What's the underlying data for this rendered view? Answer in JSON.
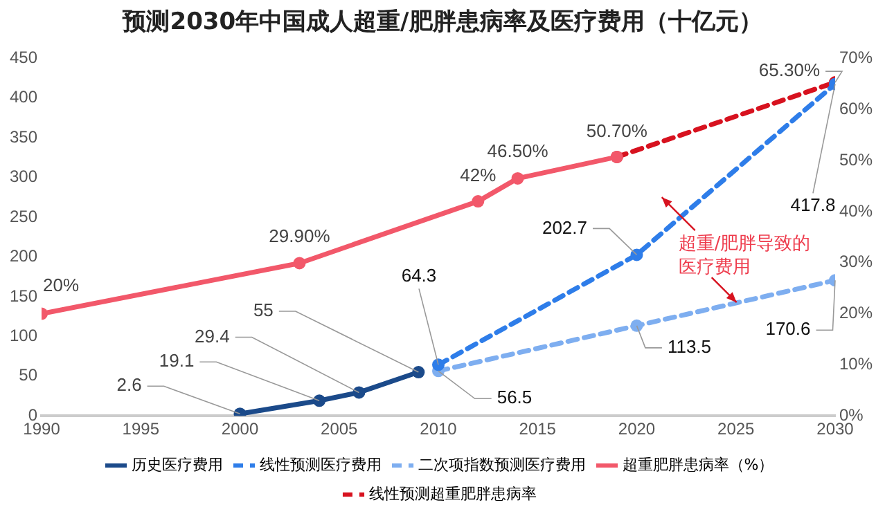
{
  "chart_data": {
    "type": "line",
    "title": "预测2030年中国成人超重/肥胖患病率及医疗费用（十亿元）",
    "xlim": [
      1990,
      2030
    ],
    "xticks": [
      1990,
      1995,
      2000,
      2005,
      2010,
      2015,
      2020,
      2025,
      2030
    ],
    "ylim": [
      0,
      450
    ],
    "yticks": [
      0,
      50,
      100,
      150,
      200,
      250,
      300,
      350,
      400,
      450
    ],
    "y2lim": [
      0,
      70
    ],
    "y2ticks": [
      {
        "value": 0,
        "label": "0%"
      },
      {
        "value": 10,
        "label": "10%"
      },
      {
        "value": 20,
        "label": "20%"
      },
      {
        "value": 30,
        "label": "30%"
      },
      {
        "value": 40,
        "label": "40%"
      },
      {
        "value": 50,
        "label": "50%"
      },
      {
        "value": 60,
        "label": "60%"
      },
      {
        "value": 70,
        "label": "70%"
      }
    ],
    "grid": false,
    "legend": "bottom",
    "marker": "circle",
    "annotations": [
      "超重/肥胖导致的医疗费用"
    ],
    "series": [
      {
        "name": "历史医疗费用",
        "color": "#1b4a8a",
        "line_style": "solid",
        "x": [
          2000,
          2004,
          2006,
          2009
        ],
        "values": [
          2.6,
          19.1,
          29.4,
          55
        ],
        "value_labels": [
          "2.6",
          "19.1",
          "29.4",
          "55"
        ]
      },
      {
        "name": "线性预测医疗费用",
        "color": "#2e7de9",
        "line_style": "dashed",
        "x": [
          2010,
          2020,
          2030
        ],
        "values": [
          64.3,
          202.7,
          417.8
        ],
        "value_labels": [
          "64.3",
          "202.7",
          "417.8"
        ]
      },
      {
        "name": "二次项指数预测医疗费用",
        "color": "#7eaef0",
        "line_style": "dashed",
        "x": [
          2010,
          2020,
          2030
        ],
        "values": [
          56.5,
          113.5,
          170.6
        ],
        "value_labels": [
          "56.5",
          "113.5",
          "170.6"
        ]
      },
      {
        "name": "超重肥胖患病率（%）",
        "color": "#f2586a",
        "line_style": "solid",
        "axis": "y2",
        "x": [
          1990,
          2003,
          2012,
          2014,
          2019
        ],
        "values": [
          20,
          29.9,
          42,
          46.5,
          50.7
        ],
        "value_labels": [
          "20%",
          "29.90%",
          "42%",
          "46.50%",
          "50.70%"
        ]
      },
      {
        "name": "线性预测超重肥胖患病率",
        "color": "#d7121f",
        "line_style": "dashed",
        "axis": "y2",
        "x": [
          2019,
          2030
        ],
        "values": [
          50.7,
          65.3
        ],
        "value_labels": [
          null,
          "65.30%"
        ]
      }
    ]
  }
}
